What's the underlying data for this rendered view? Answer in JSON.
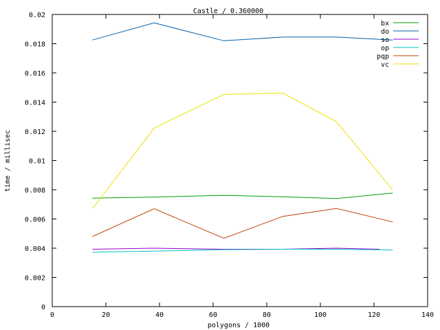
{
  "chart_data": {
    "type": "line",
    "title": "Castle / 0.360000",
    "xlabel": "polygons / 1000",
    "ylabel": "time / millisec",
    "xlim": [
      0,
      140
    ],
    "ylim": [
      0,
      0.02
    ],
    "xticks": [
      0,
      20,
      40,
      60,
      80,
      100,
      120,
      140
    ],
    "yticks": [
      0,
      0.002,
      0.004,
      0.006,
      0.008,
      0.01,
      0.012,
      0.014,
      0.016,
      0.018,
      0.02
    ],
    "xtick_labels": [
      "0",
      "20",
      "40",
      "60",
      "80",
      "100",
      "120",
      "140"
    ],
    "ytick_labels": [
      "0",
      "0.002",
      "0.004",
      "0.006",
      "0.008",
      "0.01",
      "0.012",
      "0.014",
      "0.016",
      "0.018",
      "0.02"
    ],
    "grid": false,
    "legend": "top-right",
    "series": [
      {
        "name": "bx",
        "color": "#00a000",
        "x": [
          15,
          38,
          64,
          86,
          106,
          127
        ],
        "y": [
          0.00742,
          0.0075,
          0.00762,
          0.00752,
          0.0074,
          0.00778
        ]
      },
      {
        "name": "do",
        "color": "#0060ad",
        "x": [
          15,
          38,
          64,
          86,
          106,
          127
        ],
        "y": [
          0.01825,
          0.01942,
          0.0182,
          0.01845,
          0.01845,
          0.01825
        ]
      },
      {
        "name": "so",
        "color": "#9400d3",
        "x": [
          15,
          38,
          64,
          86,
          106,
          122
        ],
        "y": [
          0.00393,
          0.004,
          0.00393,
          0.00393,
          0.004,
          0.00393
        ]
      },
      {
        "name": "op",
        "color": "#00c0c0",
        "x": [
          15,
          38,
          64,
          86,
          106,
          127
        ],
        "y": [
          0.00372,
          0.0038,
          0.0039,
          0.00393,
          0.00393,
          0.00388
        ]
      },
      {
        "name": "pqp",
        "color": "#c04000",
        "x": [
          15,
          38,
          64,
          86,
          106,
          127
        ],
        "y": [
          0.0048,
          0.0067,
          0.00468,
          0.00618,
          0.00672,
          0.0058
        ]
      },
      {
        "name": "vc",
        "color": "#f0e000",
        "x": [
          15,
          38,
          64,
          86,
          106,
          127
        ],
        "y": [
          0.0067,
          0.01222,
          0.01452,
          0.01462,
          0.01265,
          0.00798
        ]
      }
    ]
  }
}
